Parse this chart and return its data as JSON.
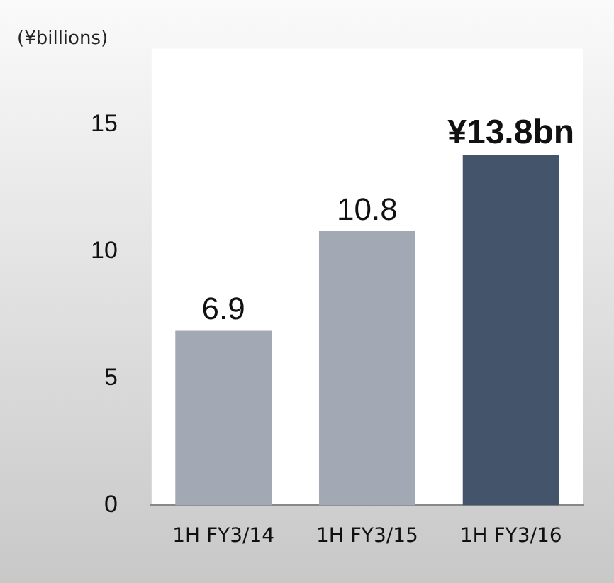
{
  "chart_data": {
    "type": "bar",
    "ylabel": "(¥billions)",
    "categories": [
      "1H FY3/14",
      "1H FY3/15",
      "1H FY3/16"
    ],
    "values": [
      6.9,
      10.8,
      13.8
    ],
    "colors": [
      "#a3a9b4",
      "#a3a9b4",
      "#44546a"
    ],
    "value_labels": [
      "6.9",
      "10.8",
      "¥13.8bn"
    ],
    "ylim": [
      0,
      18
    ],
    "yticks": [
      0,
      5,
      10,
      15
    ],
    "grid": false,
    "legend": false
  }
}
